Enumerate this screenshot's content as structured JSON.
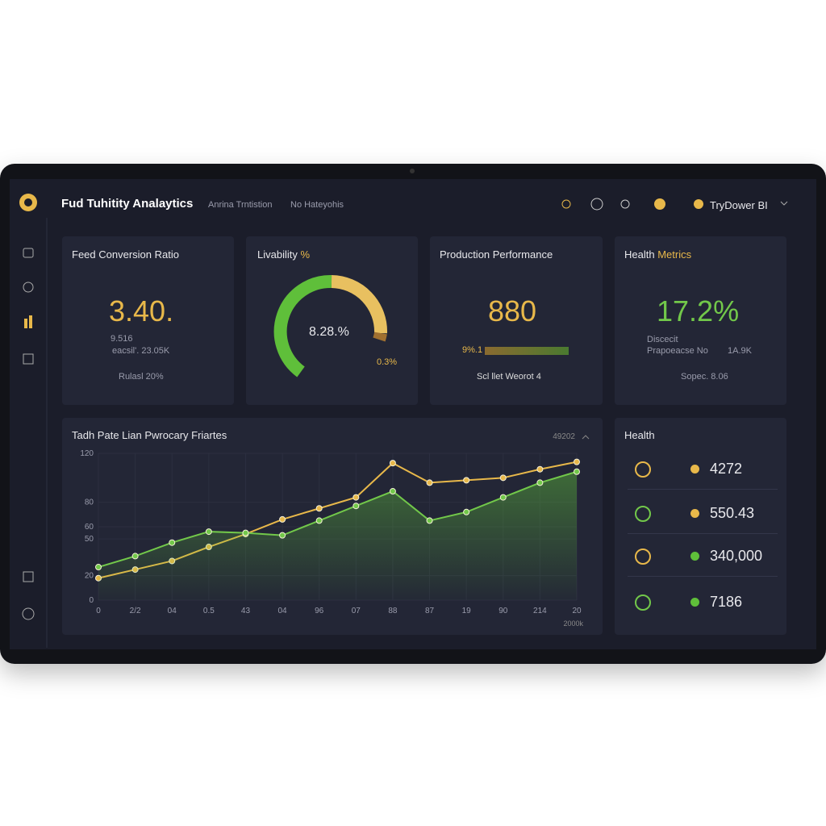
{
  "header": {
    "title": "Fud Tuhitity Analaytics",
    "tabs": [
      "Anrina Trntistion",
      "No Hateyohis"
    ],
    "user": "TryDower BI"
  },
  "cards": [
    {
      "title": "Feed Conversion Ratio",
      "value": "3.40.",
      "lines": [
        "9.516",
        "eacsil'. 23.05K"
      ],
      "footer": "Rulasl 20%"
    },
    {
      "title": "Livability",
      "title_accent": "%",
      "value": "8.28.%",
      "footer": "0.3%"
    },
    {
      "title": "Production Performance",
      "value": "880",
      "bar_label": "9%.1",
      "footer": "Scl llet Weorot 4"
    },
    {
      "title": "Health",
      "title_accent": "Metrics",
      "value": "17.2%",
      "lines": [
        "Discecit",
        "Prapoeacse No",
        "1A.9K"
      ],
      "footer": "Sopec. 8.06"
    }
  ],
  "health_list": {
    "title": "Health",
    "items": [
      "4272",
      "550.43",
      "340,000",
      "7186"
    ]
  },
  "chart_data": {
    "type": "line",
    "title": "Tadh Pate Lian Pwrocary Friartes",
    "date_label": "49202",
    "x_note": "2000k",
    "categories": [
      "0",
      "2/2",
      "04",
      "0.5",
      "43",
      "04",
      "96",
      "07",
      "88",
      "87",
      "19",
      "90",
      "214",
      "20"
    ],
    "series": [
      {
        "name": "Yellow",
        "color": "#e8b84a",
        "values": [
          18,
          25,
          32,
          43.5,
          54,
          66,
          75,
          84,
          112,
          96,
          98,
          100,
          107,
          113
        ]
      },
      {
        "name": "Green",
        "color": "#72c84a",
        "values": [
          27,
          36,
          47,
          56,
          55,
          53,
          65,
          77,
          89,
          65,
          72,
          84,
          96,
          105
        ],
        "area": true
      }
    ],
    "ylim": [
      0,
      120
    ],
    "yticks": [
      0,
      20,
      50,
      60,
      80,
      120
    ],
    "grid": true
  }
}
